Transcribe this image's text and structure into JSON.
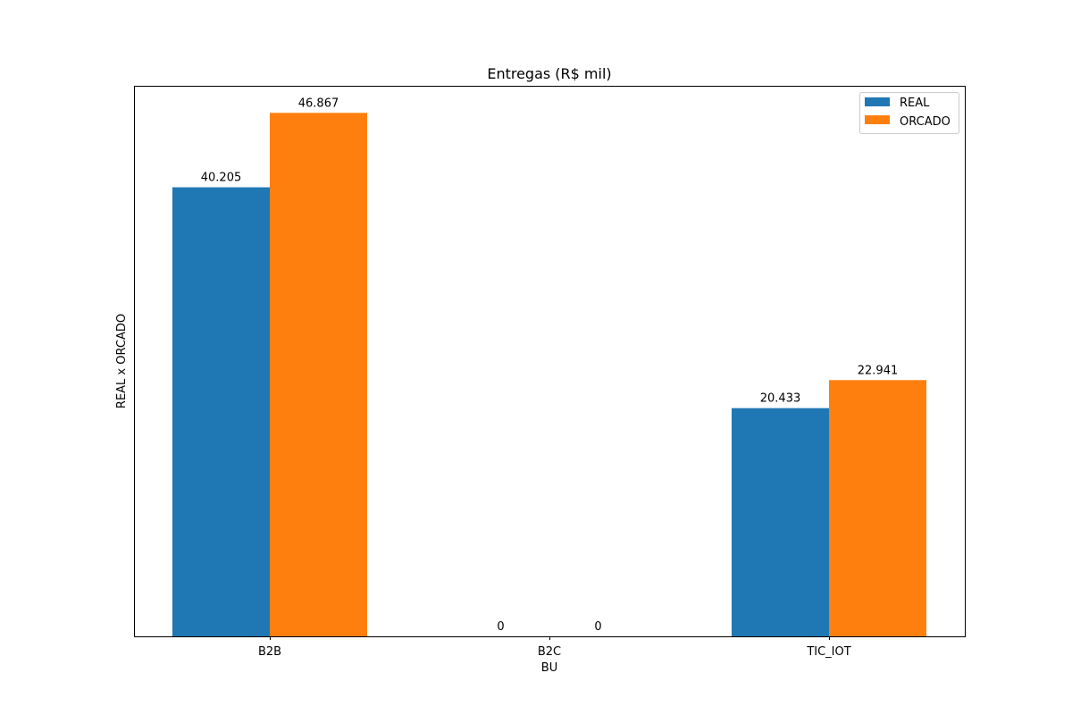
{
  "chart_data": {
    "type": "bar",
    "title": "Entregas (R$ mil)",
    "xlabel": "BU",
    "ylabel": "REAL x ORCADO",
    "categories": [
      "B2B",
      "B2C",
      "TIC_IOT"
    ],
    "series": [
      {
        "name": "REAL",
        "values": [
          40.205,
          0,
          20.433
        ],
        "labels": [
          "40.205",
          "0",
          "20.433"
        ],
        "color": "#1f77b4"
      },
      {
        "name": "ORCADO",
        "values": [
          46.867,
          0,
          22.941
        ],
        "labels": [
          "46.867",
          "0",
          "22.941"
        ],
        "color": "#ff7f0e"
      }
    ],
    "ylim": [
      0,
      49.21
    ],
    "grid": false,
    "legend": "top-right",
    "y_ticks_shown": false
  }
}
